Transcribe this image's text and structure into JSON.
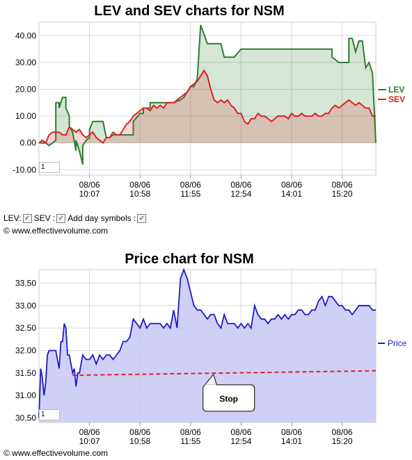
{
  "lev_chart": {
    "title": "LEV and SEV charts for NSM",
    "zoom_value": "1",
    "controls": {
      "lev_label": "LEV:",
      "sev_label": "SEV :",
      "day_symbols_label": "Add day symbols :"
    },
    "copyright": "© www.effectivevolume.com"
  },
  "price_chart": {
    "title": "Price chart for NSM",
    "zoom_value": "1",
    "stop_label": "Stop",
    "copyright": "© www.effectivevolume.com"
  },
  "colors": {
    "lev": "#2e7d32",
    "sev": "#e02020",
    "price": "#1c1cc8",
    "stop": "#e02020",
    "price_fill": "#c8c8f5"
  },
  "chart_data": [
    {
      "type": "line",
      "title": "LEV and SEV charts for NSM",
      "x_tick_labels": [
        [
          "08/06",
          "10:07"
        ],
        [
          "08/06",
          "10:58"
        ],
        [
          "08/06",
          "11:55"
        ],
        [
          "08/06",
          "12:54"
        ],
        [
          "08/06",
          "14:01"
        ],
        [
          "08/06",
          "15:20"
        ]
      ],
      "y_ticks": [
        "-10.00",
        "0.00",
        "10.00",
        "20.00",
        "30.00",
        "40.00"
      ],
      "ylim": [
        -12,
        45
      ],
      "x_range": [
        0,
        100
      ],
      "x_tick_positions": [
        15,
        30,
        45,
        60,
        75,
        90
      ],
      "grid": true,
      "legend_placement": "right",
      "series": [
        {
          "name": "LEV",
          "x": [
            0,
            2,
            3,
            4,
            5,
            5,
            6,
            6,
            7,
            8,
            8,
            9,
            9,
            10,
            11,
            11,
            12,
            13,
            13,
            14,
            15,
            15,
            16,
            17,
            17,
            18,
            19,
            20,
            21,
            21,
            22,
            23,
            24,
            25,
            27,
            28,
            28,
            30,
            31,
            31,
            33,
            33,
            35,
            36,
            37,
            38,
            40,
            42,
            43,
            45,
            46,
            47,
            48,
            50,
            51,
            52,
            52,
            54,
            55,
            55,
            57,
            58,
            60,
            62,
            63,
            64,
            66,
            68,
            70,
            72,
            73,
            74,
            76,
            78,
            80,
            82,
            84,
            86,
            87,
            87,
            89,
            89,
            91,
            92,
            92,
            93,
            94,
            94,
            95,
            96,
            97,
            97,
            98,
            99,
            100
          ],
          "y": [
            0,
            0,
            -1,
            0,
            1,
            15,
            15,
            13,
            17,
            17,
            13,
            10,
            6,
            4,
            -3,
            1,
            -3,
            -8,
            -1,
            1,
            2,
            5,
            8,
            8,
            8,
            8,
            8,
            2,
            2,
            2,
            3,
            3,
            3,
            3,
            3,
            3,
            8,
            11,
            11,
            13,
            13,
            15,
            15,
            15,
            15,
            15,
            15,
            16,
            17,
            21,
            21,
            24,
            44,
            37,
            37,
            37,
            37,
            37,
            32,
            32,
            32,
            32,
            35,
            35,
            35,
            35,
            35,
            35,
            35,
            35,
            35,
            35,
            35,
            35,
            35,
            35,
            35,
            35,
            35,
            32,
            30,
            30,
            30,
            30,
            39,
            39,
            34,
            34,
            38,
            38,
            28,
            28,
            30,
            26,
            0
          ]
        },
        {
          "name": "SEV",
          "x": [
            0,
            1,
            2,
            3,
            4,
            5,
            6,
            7,
            8,
            9,
            10,
            11,
            12,
            13,
            14,
            15,
            16,
            17,
            18,
            19,
            20,
            21,
            22,
            23,
            24,
            25,
            26,
            27,
            28,
            29,
            30,
            31,
            32,
            33,
            34,
            35,
            36,
            37,
            38,
            39,
            40,
            41,
            42,
            43,
            44,
            45,
            46,
            47,
            48,
            49,
            50,
            51,
            52,
            53,
            54,
            55,
            56,
            57,
            58,
            59,
            60,
            61,
            62,
            63,
            64,
            65,
            66,
            67,
            68,
            69,
            70,
            71,
            72,
            73,
            74,
            75,
            76,
            77,
            78,
            79,
            80,
            81,
            82,
            83,
            84,
            85,
            86,
            87,
            88,
            89,
            90,
            91,
            92,
            93,
            94,
            95,
            96,
            97,
            98,
            99,
            100
          ],
          "y": [
            0,
            1,
            0,
            3,
            4,
            4,
            4,
            3,
            3,
            6,
            5,
            4,
            5,
            3,
            2,
            3,
            4,
            2,
            1,
            0,
            2,
            2,
            4,
            3,
            3,
            5,
            7,
            8,
            10,
            11,
            12,
            13,
            13,
            12,
            14,
            13,
            14,
            13,
            15,
            15,
            15,
            16,
            17,
            18,
            19,
            21,
            22,
            23,
            25,
            27,
            25,
            20,
            16,
            15,
            16,
            15,
            16,
            14,
            13,
            11,
            11,
            8,
            7,
            9,
            9,
            11,
            10,
            10,
            9,
            8,
            9,
            10,
            10,
            10,
            9,
            11,
            10,
            10,
            11,
            10,
            10,
            10,
            11,
            10,
            10,
            11,
            11,
            13,
            14,
            13,
            14,
            15,
            16,
            15,
            14,
            15,
            14,
            13,
            13,
            10,
            10
          ]
        }
      ]
    },
    {
      "type": "area",
      "title": "Price chart for NSM",
      "x_tick_labels": [
        [
          "08/06",
          "10:07"
        ],
        [
          "08/06",
          "10:58"
        ],
        [
          "08/06",
          "11:55"
        ],
        [
          "08/06",
          "12:54"
        ],
        [
          "08/06",
          "14:01"
        ],
        [
          "08/06",
          "15:20"
        ]
      ],
      "y_ticks": [
        "30.50",
        "31.00",
        "31.50",
        "32.00",
        "32.50",
        "33.00",
        "33.50"
      ],
      "ylim": [
        30.4,
        33.8
      ],
      "x_range": [
        0,
        100
      ],
      "x_tick_positions": [
        15,
        30,
        45,
        60,
        75,
        90
      ],
      "grid": true,
      "legend_placement": "right",
      "series": [
        {
          "name": "Price",
          "x": [
            0,
            0.5,
            1,
            1.5,
            2,
            2.5,
            3,
            3.5,
            4,
            5,
            6,
            6.5,
            7,
            7.5,
            8,
            8.5,
            9,
            9.5,
            10,
            10.5,
            11,
            11.5,
            12,
            13,
            14,
            15,
            16,
            17,
            18,
            19,
            20,
            21,
            22,
            23,
            24,
            25,
            26,
            27,
            28,
            29,
            30,
            31,
            32,
            33,
            34,
            35,
            36,
            37,
            38,
            39,
            40,
            41,
            42,
            43,
            44,
            45,
            46,
            47,
            48,
            49,
            50,
            51,
            52,
            53,
            54,
            55,
            56,
            57,
            58,
            59,
            60,
            61,
            62,
            63,
            64,
            65,
            66,
            67,
            68,
            69,
            70,
            71,
            72,
            73,
            74,
            75,
            76,
            77,
            78,
            79,
            80,
            81,
            82,
            83,
            84,
            85,
            86,
            87,
            88,
            89,
            90,
            91,
            92,
            93,
            94,
            95,
            96,
            97,
            98,
            99,
            100
          ],
          "y": [
            30.5,
            31.6,
            31.4,
            31.0,
            31.3,
            31.9,
            32.0,
            32.0,
            32.0,
            32.0,
            31.6,
            32.2,
            32.2,
            32.6,
            32.5,
            31.9,
            31.9,
            31.7,
            31.5,
            31.6,
            31.2,
            31.5,
            31.5,
            31.9,
            31.8,
            31.8,
            31.9,
            31.7,
            31.9,
            31.8,
            31.9,
            31.9,
            31.8,
            31.9,
            32.0,
            32.2,
            32.2,
            32.3,
            32.7,
            32.6,
            32.5,
            32.7,
            32.5,
            32.6,
            32.6,
            32.6,
            32.6,
            32.5,
            32.6,
            32.5,
            32.9,
            32.5,
            33.6,
            33.8,
            33.6,
            33.3,
            33.0,
            32.9,
            32.9,
            32.8,
            32.7,
            32.8,
            32.8,
            32.6,
            32.5,
            32.8,
            32.6,
            32.6,
            32.6,
            32.5,
            32.6,
            32.5,
            32.6,
            32.5,
            33.0,
            32.8,
            32.7,
            32.7,
            32.6,
            32.7,
            32.7,
            32.8,
            32.7,
            32.8,
            32.7,
            32.8,
            32.8,
            32.9,
            32.9,
            32.8,
            32.8,
            32.9,
            32.9,
            33.1,
            33.2,
            33.0,
            33.2,
            33.2,
            33.1,
            33.0,
            33.0,
            32.9,
            32.9,
            32.8,
            32.9,
            33.0,
            33.0,
            33.0,
            33.0,
            32.9,
            32.9
          ]
        },
        {
          "name": "Stop",
          "x": [
            10,
            100
          ],
          "y": [
            31.45,
            31.55
          ]
        }
      ]
    }
  ]
}
